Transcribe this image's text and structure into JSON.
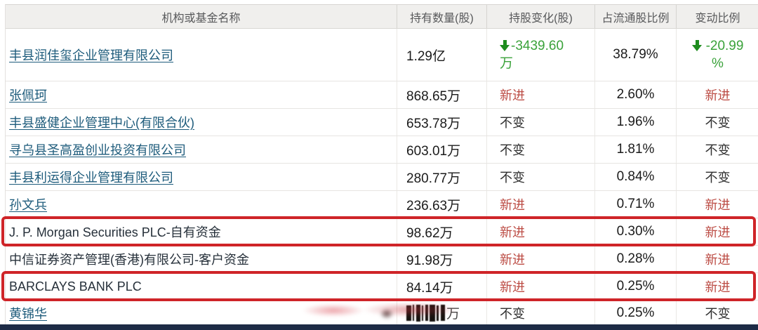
{
  "colors": {
    "link": "#1d5b7b",
    "new_red": "#bb4a42",
    "down_green": "#3aa23a",
    "arrow_green": "#1e8c1e",
    "highlight_box": "#cf2428",
    "footer_bar": "#1d2b46"
  },
  "table": {
    "columns": [
      "机构或基金名称",
      "持有数量(股)",
      "持股变化(股)",
      "占流通股比例",
      "变动比例"
    ],
    "rows": [
      {
        "name": "丰县润佳玺企业管理有限公司",
        "name_link": true,
        "qty": "1.29亿",
        "change": "-3439.60万",
        "change_type": "down",
        "pct": "38.79%",
        "ratio": "-20.99%",
        "ratio_type": "down",
        "highlighted": false
      },
      {
        "name": "张佩珂",
        "name_link": true,
        "qty": "868.65万",
        "change": "新进",
        "change_type": "new",
        "pct": "2.60%",
        "ratio": "新进",
        "ratio_type": "new",
        "highlighted": false
      },
      {
        "name": "丰县盛健企业管理中心(有限合伙)",
        "name_link": true,
        "qty": "653.78万",
        "change": "不变",
        "change_type": "same",
        "pct": "1.96%",
        "ratio": "不变",
        "ratio_type": "same",
        "highlighted": false
      },
      {
        "name": "寻乌县圣高盈创业投资有限公司",
        "name_link": true,
        "qty": "603.01万",
        "change": "不变",
        "change_type": "same",
        "pct": "1.81%",
        "ratio": "不变",
        "ratio_type": "same",
        "highlighted": false
      },
      {
        "name": "丰县利运得企业管理有限公司",
        "name_link": true,
        "qty": "280.77万",
        "change": "不变",
        "change_type": "same",
        "pct": "0.84%",
        "ratio": "不变",
        "ratio_type": "same",
        "highlighted": false
      },
      {
        "name": "孙文兵",
        "name_link": true,
        "qty": "236.63万",
        "change": "新进",
        "change_type": "new",
        "pct": "0.71%",
        "ratio": "新进",
        "ratio_type": "new",
        "highlighted": false
      },
      {
        "name": "J. P. Morgan Securities PLC-自有资金",
        "name_link": false,
        "qty": "98.62万",
        "change": "新进",
        "change_type": "new",
        "pct": "0.30%",
        "ratio": "新进",
        "ratio_type": "new",
        "highlighted": true
      },
      {
        "name": "中信证券资产管理(香港)有限公司-客户资金",
        "name_link": false,
        "qty": "91.98万",
        "change": "新进",
        "change_type": "new",
        "pct": "0.28%",
        "ratio": "新进",
        "ratio_type": "new",
        "highlighted": false
      },
      {
        "name": "BARCLAYS BANK PLC",
        "name_link": false,
        "qty": "84.14万",
        "change": "新进",
        "change_type": "new",
        "pct": "0.25%",
        "ratio": "新进",
        "ratio_type": "new",
        "highlighted": true
      },
      {
        "name": "黄锦华",
        "name_link": true,
        "qty": "",
        "qty_redacted": true,
        "qty_suffix": "万",
        "change": "不变",
        "change_type": "same",
        "pct": "0.25%",
        "ratio": "不变",
        "ratio_type": "same",
        "highlighted": false
      }
    ]
  }
}
